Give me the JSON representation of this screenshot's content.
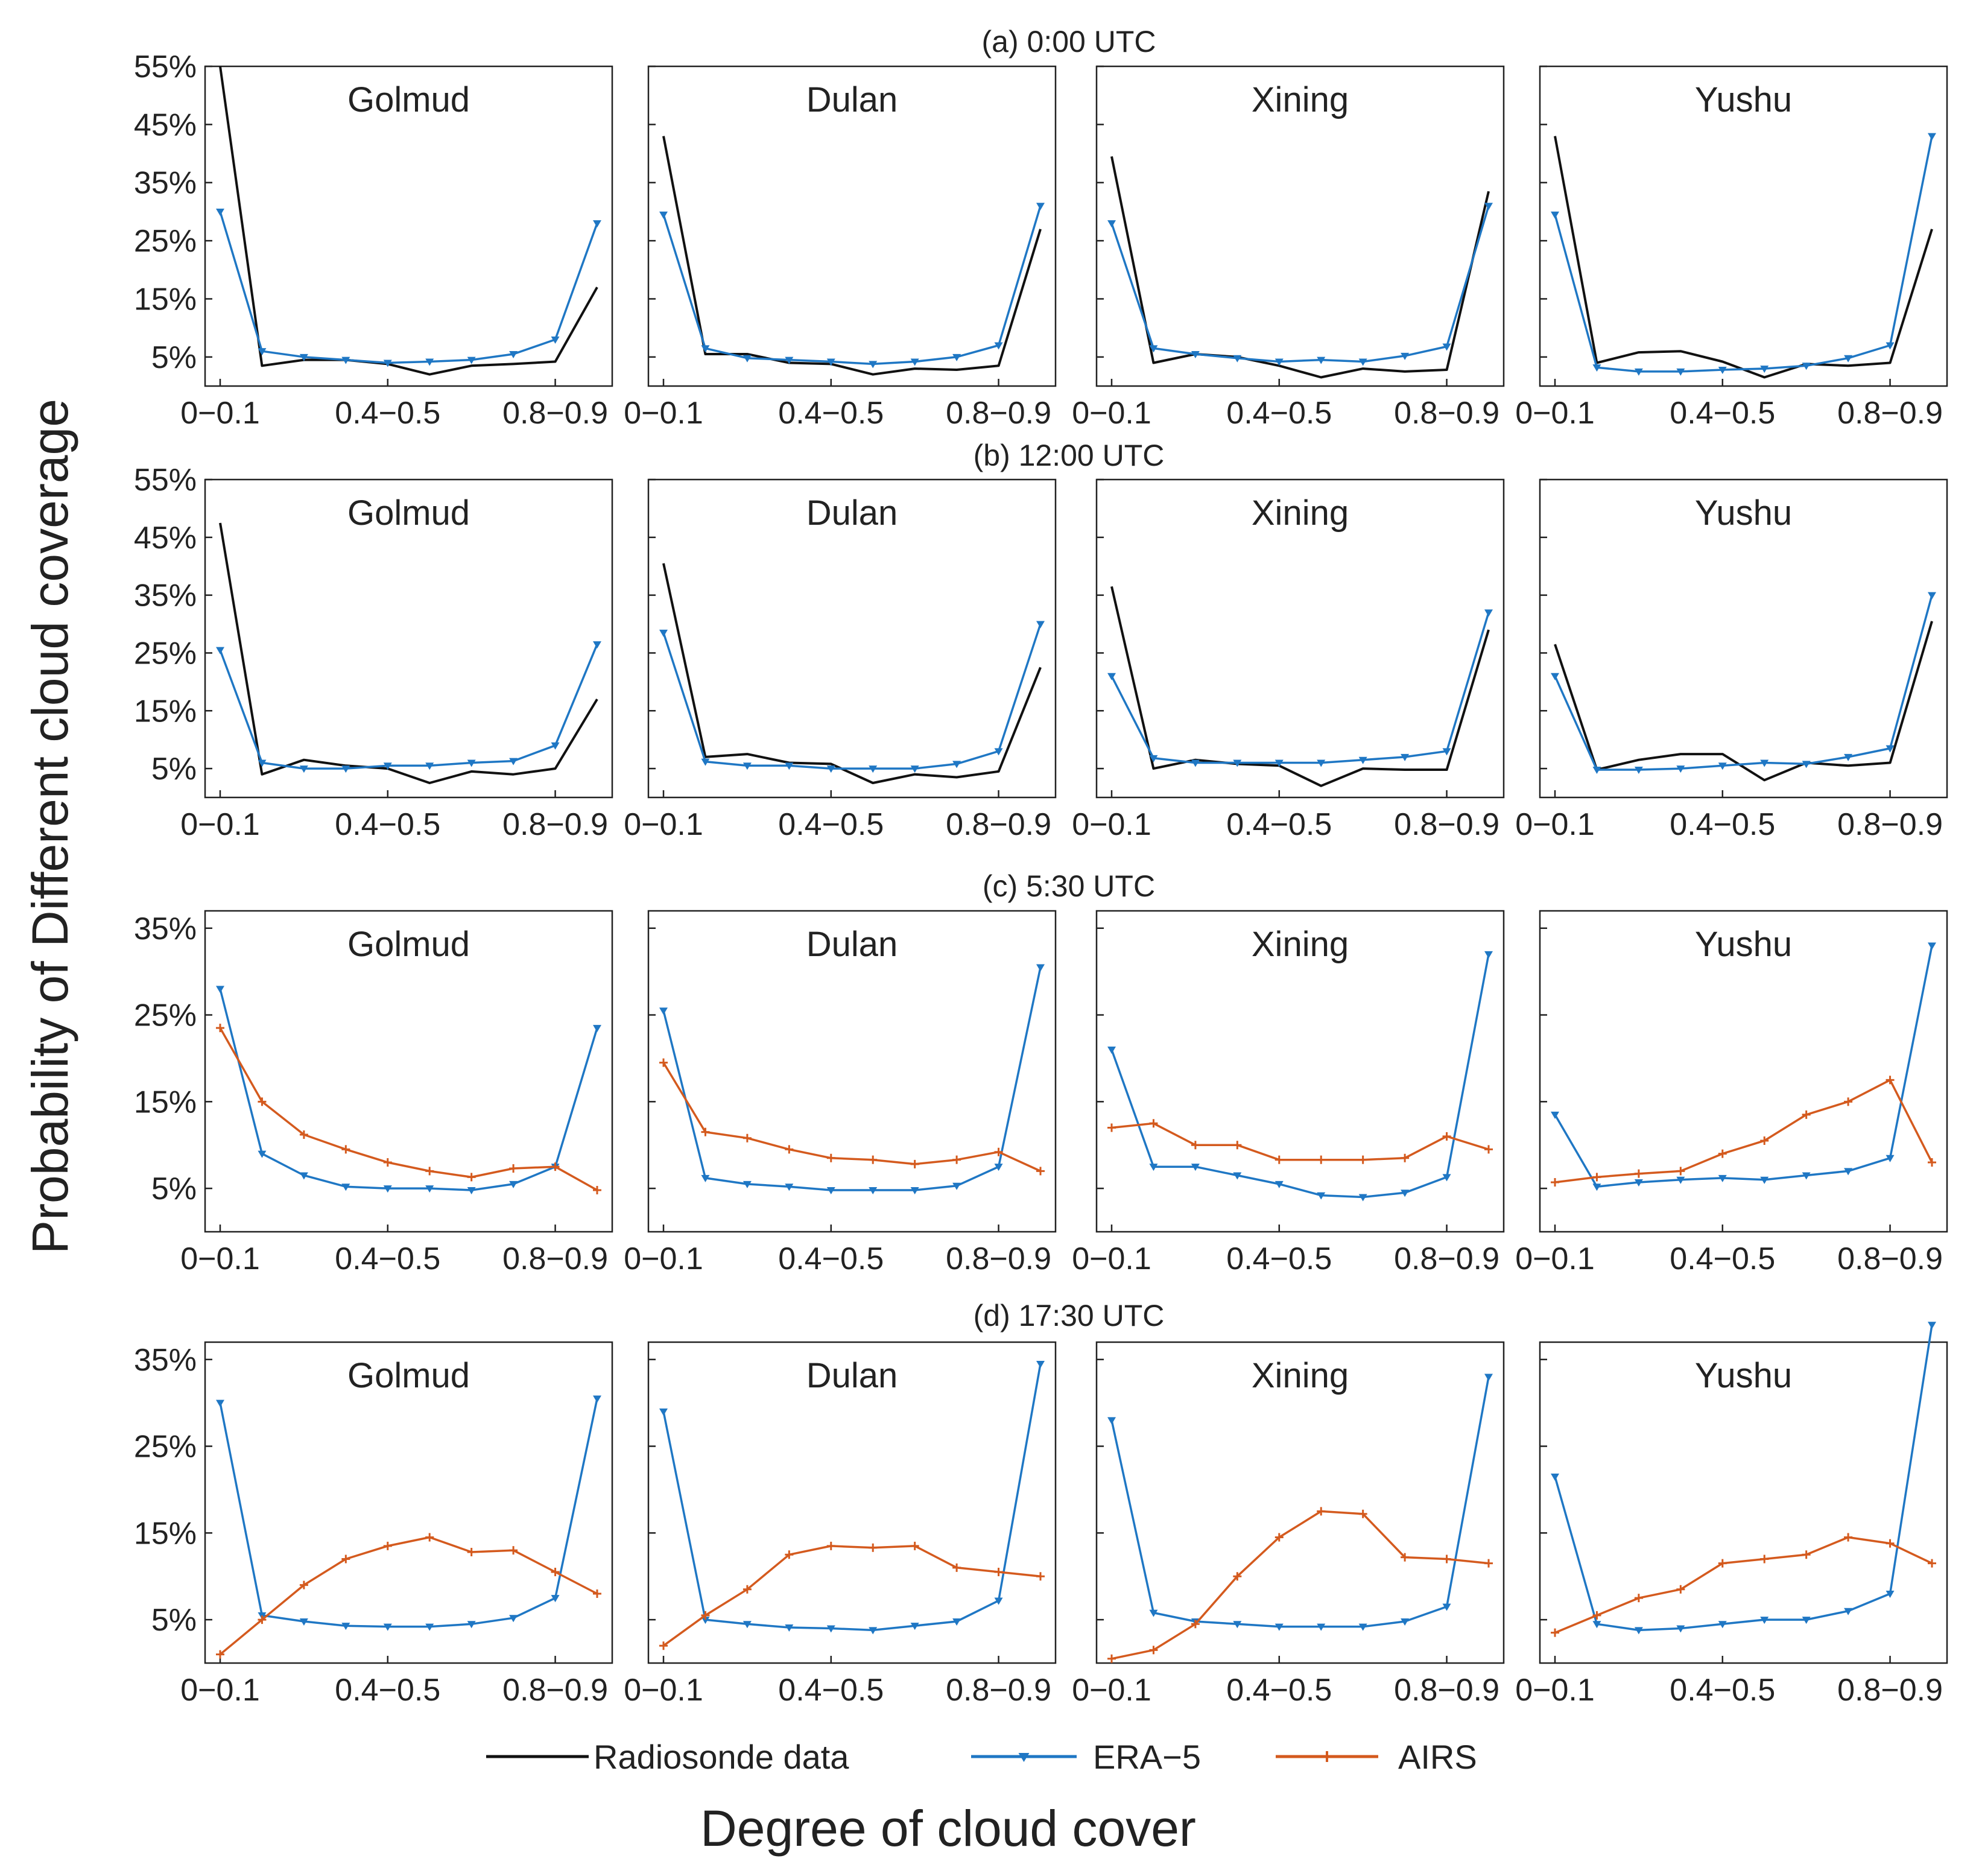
{
  "chart_data": {
    "type": "line",
    "x_categories": [
      "0-0.1",
      "0.1-0.2",
      "0.2-0.3",
      "0.3-0.4",
      "0.4-0.5",
      "0.5-0.6",
      "0.6-0.7",
      "0.7-0.8",
      "0.8-0.9",
      "0.9-1"
    ],
    "x_tick_labels": [
      "0−0.1",
      "0.4−0.5",
      "0.8−0.9"
    ],
    "xlabel": "Degree of cloud cover",
    "ylabel": "Probability of Different  cloud coverage",
    "legend": [
      {
        "key": "radiosonde",
        "label": "Radiosonde data",
        "color": "#111111",
        "marker": "none"
      },
      {
        "key": "era5",
        "label": "ERA−5",
        "color": "#1f77c4",
        "marker": "triangle-down"
      },
      {
        "key": "airs",
        "label": "AIRS",
        "color": "#d45a1e",
        "marker": "plus"
      }
    ],
    "rows": [
      {
        "title": "(a) 0:00 UTC",
        "ylim": [
          0,
          55
        ],
        "yticks": [
          5,
          15,
          25,
          35,
          45,
          55
        ],
        "ytick_labels": [
          "5%",
          "15%",
          "25%",
          "35%",
          "45%",
          "55%"
        ],
        "panels": [
          {
            "station": "Golmud",
            "radiosonde": [
              55,
              3.5,
              4.5,
              4.5,
              3.8,
              2,
              3.5,
              3.8,
              4.2,
              17
            ],
            "era5": [
              30,
              6,
              5,
              4.5,
              4,
              4.2,
              4.5,
              5.5,
              8,
              28
            ]
          },
          {
            "station": "Dulan",
            "radiosonde": [
              43,
              5.5,
              5.5,
              4,
              3.8,
              2,
              3,
              2.8,
              3.5,
              27
            ],
            "era5": [
              29.5,
              6.5,
              4.8,
              4.5,
              4.2,
              3.8,
              4.2,
              5,
              7,
              31
            ]
          },
          {
            "station": "Xining",
            "radiosonde": [
              39.5,
              4,
              5.5,
              5,
              3.5,
              1.5,
              3,
              2.5,
              2.8,
              33.5
            ],
            "era5": [
              28,
              6.5,
              5.5,
              4.8,
              4.2,
              4.5,
              4.2,
              5.2,
              6.8,
              31
            ]
          },
          {
            "station": "Yushu",
            "radiosonde": [
              43,
              4,
              5.8,
              6,
              4.2,
              1.5,
              3.8,
              3.5,
              4,
              27
            ],
            "era5": [
              29.5,
              3.2,
              2.5,
              2.5,
              2.8,
              3,
              3.5,
              4.8,
              7,
              43
            ]
          }
        ]
      },
      {
        "title": "(b) 12:00 UTC",
        "ylim": [
          0,
          55
        ],
        "yticks": [
          5,
          15,
          25,
          35,
          45,
          55
        ],
        "ytick_labels": [
          "5%",
          "15%",
          "25%",
          "35%",
          "45%",
          "55%"
        ],
        "panels": [
          {
            "station": "Golmud",
            "radiosonde": [
              47.5,
              4,
              6.5,
              5.5,
              5,
              2.5,
              4.5,
              4,
              5,
              17
            ],
            "era5": [
              25.5,
              6,
              5,
              5,
              5.5,
              5.5,
              6,
              6.3,
              9,
              26.5
            ]
          },
          {
            "station": "Dulan",
            "radiosonde": [
              40.5,
              7,
              7.5,
              6,
              5.8,
              2.5,
              4,
              3.5,
              4.5,
              22.5
            ],
            "era5": [
              28.5,
              6.2,
              5.5,
              5.5,
              5,
              5,
              5,
              5.8,
              8,
              30
            ]
          },
          {
            "station": "Xining",
            "radiosonde": [
              36.5,
              5,
              6.5,
              5.8,
              5.5,
              2,
              5,
              4.8,
              4.8,
              29
            ],
            "era5": [
              21,
              6.8,
              6,
              6,
              6,
              6,
              6.5,
              7,
              8,
              32
            ]
          },
          {
            "station": "Yushu",
            "radiosonde": [
              26.5,
              4.8,
              6.5,
              7.5,
              7.5,
              3,
              6,
              5.5,
              6,
              30.5
            ],
            "era5": [
              21,
              4.8,
              4.8,
              5,
              5.5,
              6,
              5.8,
              7,
              8.5,
              35
            ]
          }
        ]
      },
      {
        "title": "(c) 5:30 UTC",
        "ylim": [
          0,
          37
        ],
        "yticks": [
          5,
          15,
          25,
          35
        ],
        "ytick_labels": [
          "5%",
          "15%",
          "25%",
          "35%"
        ],
        "panels": [
          {
            "station": "Golmud",
            "era5": [
              28,
              9,
              6.5,
              5.2,
              5,
              5,
              4.8,
              5.5,
              7.5,
              23.5
            ],
            "airs": [
              23.5,
              15,
              11.2,
              9.5,
              8,
              7,
              6.3,
              7.3,
              7.5,
              4.8
            ]
          },
          {
            "station": "Dulan",
            "era5": [
              25.5,
              6.2,
              5.5,
              5.2,
              4.8,
              4.8,
              4.8,
              5.3,
              7.5,
              30.5
            ],
            "airs": [
              19.5,
              11.5,
              10.8,
              9.5,
              8.5,
              8.3,
              7.8,
              8.3,
              9.2,
              7
            ]
          },
          {
            "station": "Xining",
            "era5": [
              21,
              7.5,
              7.5,
              6.5,
              5.5,
              4.2,
              4,
              4.5,
              6.3,
              32
            ],
            "airs": [
              12,
              12.5,
              10,
              10,
              8.3,
              8.3,
              8.3,
              8.5,
              11,
              9.5
            ]
          },
          {
            "station": "Yushu",
            "era5": [
              13.5,
              5.2,
              5.7,
              6,
              6.2,
              6,
              6.5,
              7,
              8.5,
              33
            ],
            "airs": [
              5.7,
              6.3,
              6.7,
              7,
              9,
              10.5,
              13.5,
              15,
              17.5,
              8
            ]
          }
        ]
      },
      {
        "title": "(d) 17:30 UTC",
        "ylim": [
          0,
          37
        ],
        "yticks": [
          5,
          15,
          25,
          35
        ],
        "ytick_labels": [
          "5%",
          "15%",
          "25%",
          "35%"
        ],
        "panels": [
          {
            "station": "Golmud",
            "era5": [
              30,
              5.5,
              4.8,
              4.3,
              4.2,
              4.2,
              4.5,
              5.2,
              7.5,
              30.5
            ],
            "airs": [
              1,
              5,
              9,
              12,
              13.5,
              14.5,
              12.8,
              13,
              10.5,
              8
            ]
          },
          {
            "station": "Dulan",
            "era5": [
              29,
              5,
              4.5,
              4.1,
              4,
              3.8,
              4.3,
              4.8,
              7.2,
              34.5
            ],
            "airs": [
              2,
              5.5,
              8.5,
              12.5,
              13.5,
              13.3,
              13.5,
              11,
              10.5,
              10
            ]
          },
          {
            "station": "Xining",
            "era5": [
              28,
              5.8,
              4.8,
              4.5,
              4.2,
              4.2,
              4.2,
              4.8,
              6.5,
              33
            ],
            "airs": [
              0.5,
              1.5,
              4.5,
              10,
              14.5,
              17.5,
              17.2,
              12.2,
              12,
              11.5
            ]
          },
          {
            "station": "Yushu",
            "era5": [
              21.5,
              4.5,
              3.8,
              4,
              4.5,
              5,
              5,
              6,
              8,
              39
            ],
            "airs": [
              3.5,
              5.5,
              7.5,
              8.5,
              11.5,
              12,
              12.5,
              14.5,
              13.8,
              11.5
            ]
          }
        ]
      }
    ]
  }
}
